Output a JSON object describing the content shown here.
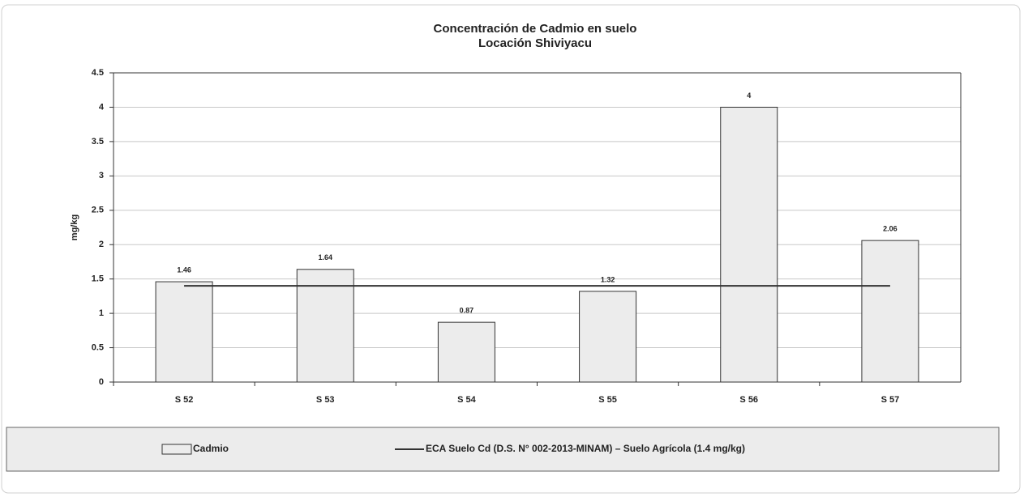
{
  "chart_data": {
    "type": "bar",
    "title": [
      "Concentración de Cadmio en suelo",
      "Locación Shiviyacu"
    ],
    "y_label": "mg/kg",
    "categories": [
      "S 52",
      "S 53",
      "S 54",
      "S 55",
      "S 56",
      "S 57"
    ],
    "series": [
      {
        "name": "Cadmio",
        "type": "bar",
        "color": "#ececec",
        "values": [
          1.46,
          1.64,
          0.87,
          1.32,
          4,
          2.06
        ]
      },
      {
        "name": "ECA Suelo Cd (D.S. N° 002-2013-MINAM) – Suelo Agrícola (1.4 mg/kg)",
        "type": "line",
        "color": "#333333",
        "values": [
          1.4,
          1.4,
          1.4,
          1.4,
          1.4,
          1.4
        ]
      }
    ],
    "ylim": [
      0,
      4.5
    ],
    "yticks": [
      0,
      0.5,
      1,
      1.5,
      2,
      2.5,
      3,
      3.5,
      4,
      4.5
    ],
    "grid": true,
    "legend": "bottom"
  }
}
